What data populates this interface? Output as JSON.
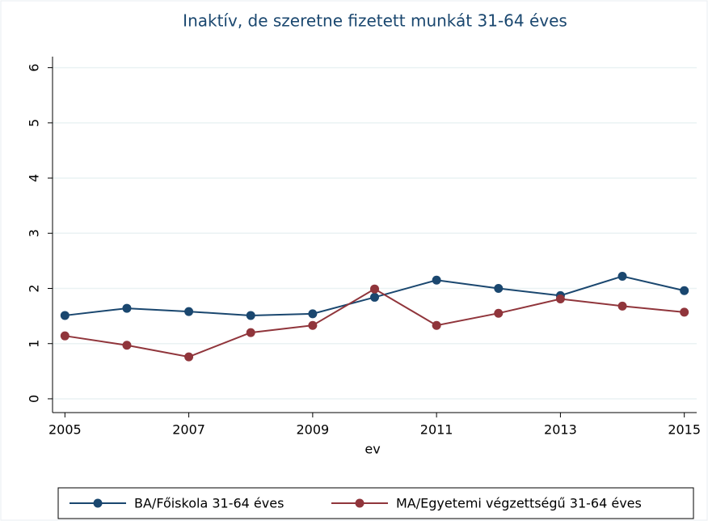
{
  "chart_data": {
    "type": "line",
    "title": "Inaktív, de szeretne fizetett munkát 31-64 éves",
    "x_label": "ev",
    "x": [
      2005,
      2006,
      2007,
      2008,
      2009,
      2010,
      2011,
      2012,
      2013,
      2014,
      2015
    ],
    "series": [
      {
        "name": "BA/Főiskola 31-64 éves",
        "color": "#1a476f",
        "values": [
          1.51,
          1.64,
          1.58,
          1.51,
          1.54,
          1.84,
          2.15,
          2.0,
          1.87,
          2.22,
          1.96
        ]
      },
      {
        "name": "MA/Egyetemi végzettségű 31-64 éves",
        "color": "#90353b",
        "values": [
          1.14,
          0.97,
          0.76,
          1.2,
          1.33,
          1.99,
          1.33,
          1.55,
          1.81,
          1.68,
          1.57
        ]
      }
    ],
    "xlim": [
      2004.8,
      2015.2
    ],
    "xticks": [
      2005,
      2007,
      2009,
      2011,
      2013,
      2015
    ],
    "ylim": [
      -0.25,
      6.2
    ],
    "yticks": [
      0,
      1,
      2,
      3,
      4,
      5,
      6
    ],
    "grid": true,
    "legend": "bottom"
  }
}
